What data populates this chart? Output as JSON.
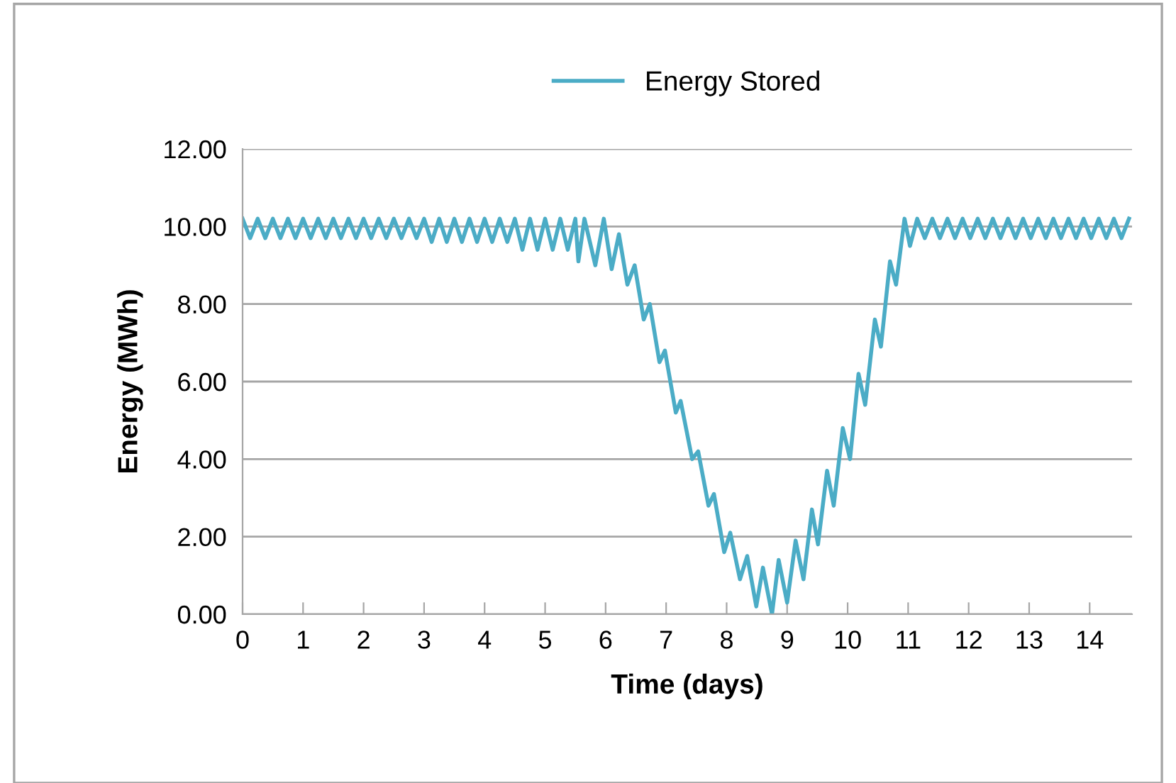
{
  "chart_data": {
    "type": "line",
    "xlabel": "Time (days)",
    "ylabel": "Energy (MWh)",
    "xlim": [
      0,
      14.7
    ],
    "xticks": [
      0,
      1,
      2,
      3,
      4,
      5,
      6,
      7,
      8,
      9,
      10,
      11,
      12,
      13,
      14
    ],
    "ylim": [
      0,
      12
    ],
    "yticks": [
      {
        "value": 0,
        "label": "0.00"
      },
      {
        "value": 2,
        "label": "2.00"
      },
      {
        "value": 4,
        "label": "4.00"
      },
      {
        "value": 6,
        "label": "6.00"
      },
      {
        "value": 8,
        "label": "8.00"
      },
      {
        "value": 10,
        "label": "10.00"
      },
      {
        "value": 12,
        "label": "12.00"
      }
    ],
    "grid": "y",
    "legend": "top",
    "marker": "none",
    "line_style": "solid",
    "series": [
      {
        "name": "Energy Stored",
        "color": "#4bacc6",
        "x": [
          0,
          0.125,
          0.25,
          0.375,
          0.5,
          0.625,
          0.75,
          0.875,
          1,
          1.125,
          1.25,
          1.375,
          1.5,
          1.625,
          1.75,
          1.875,
          2,
          2.125,
          2.25,
          2.375,
          2.5,
          2.625,
          2.75,
          2.875,
          3,
          3.125,
          3.25,
          3.375,
          3.5,
          3.625,
          3.75,
          3.875,
          4,
          4.125,
          4.25,
          4.375,
          4.5,
          4.625,
          4.75,
          4.875,
          5,
          5.125,
          5.25,
          5.375,
          5.5,
          5.55,
          5.65,
          5.83,
          5.97,
          6.1,
          6.22,
          6.36,
          6.48,
          6.63,
          6.73,
          6.89,
          6.98,
          7.16,
          7.24,
          7.43,
          7.53,
          7.7,
          7.79,
          7.96,
          8.06,
          8.22,
          8.34,
          8.49,
          8.6,
          8.75,
          8.86,
          9.0,
          9.14,
          9.27,
          9.41,
          9.51,
          9.66,
          9.77,
          9.92,
          10.04,
          10.18,
          10.29,
          10.45,
          10.55,
          10.7,
          10.8,
          10.94,
          11.03,
          11.15,
          11.275,
          11.4,
          11.525,
          11.65,
          11.775,
          11.9,
          12.025,
          12.15,
          12.275,
          12.4,
          12.525,
          12.65,
          12.775,
          12.9,
          13.025,
          13.15,
          13.275,
          13.4,
          13.525,
          13.65,
          13.775,
          13.9,
          14.025,
          14.15,
          14.275,
          14.4,
          14.525,
          14.65
        ],
        "values": [
          10.2,
          9.7,
          10.2,
          9.7,
          10.2,
          9.7,
          10.2,
          9.7,
          10.2,
          9.7,
          10.2,
          9.7,
          10.2,
          9.7,
          10.2,
          9.7,
          10.2,
          9.7,
          10.2,
          9.7,
          10.2,
          9.7,
          10.2,
          9.7,
          10.2,
          9.6,
          10.2,
          9.6,
          10.2,
          9.6,
          10.2,
          9.6,
          10.2,
          9.6,
          10.2,
          9.6,
          10.2,
          9.4,
          10.2,
          9.4,
          10.2,
          9.4,
          10.2,
          9.4,
          10.2,
          9.1,
          10.2,
          9.0,
          10.2,
          8.9,
          9.8,
          8.5,
          9.0,
          7.6,
          8.0,
          6.5,
          6.8,
          5.2,
          5.5,
          4.0,
          4.2,
          2.8,
          3.1,
          1.6,
          2.1,
          0.9,
          1.5,
          0.2,
          1.2,
          0.0,
          1.4,
          0.3,
          1.9,
          0.9,
          2.7,
          1.8,
          3.7,
          2.8,
          4.8,
          4.0,
          6.2,
          5.4,
          7.6,
          6.9,
          9.1,
          8.5,
          10.2,
          9.5,
          10.2,
          9.7,
          10.2,
          9.7,
          10.2,
          9.7,
          10.2,
          9.7,
          10.2,
          9.7,
          10.2,
          9.7,
          10.2,
          9.7,
          10.2,
          9.7,
          10.2,
          9.7,
          10.2,
          9.7,
          10.2,
          9.7,
          10.2,
          9.7,
          10.2,
          9.7,
          10.2,
          9.7,
          10.2
        ]
      }
    ]
  }
}
